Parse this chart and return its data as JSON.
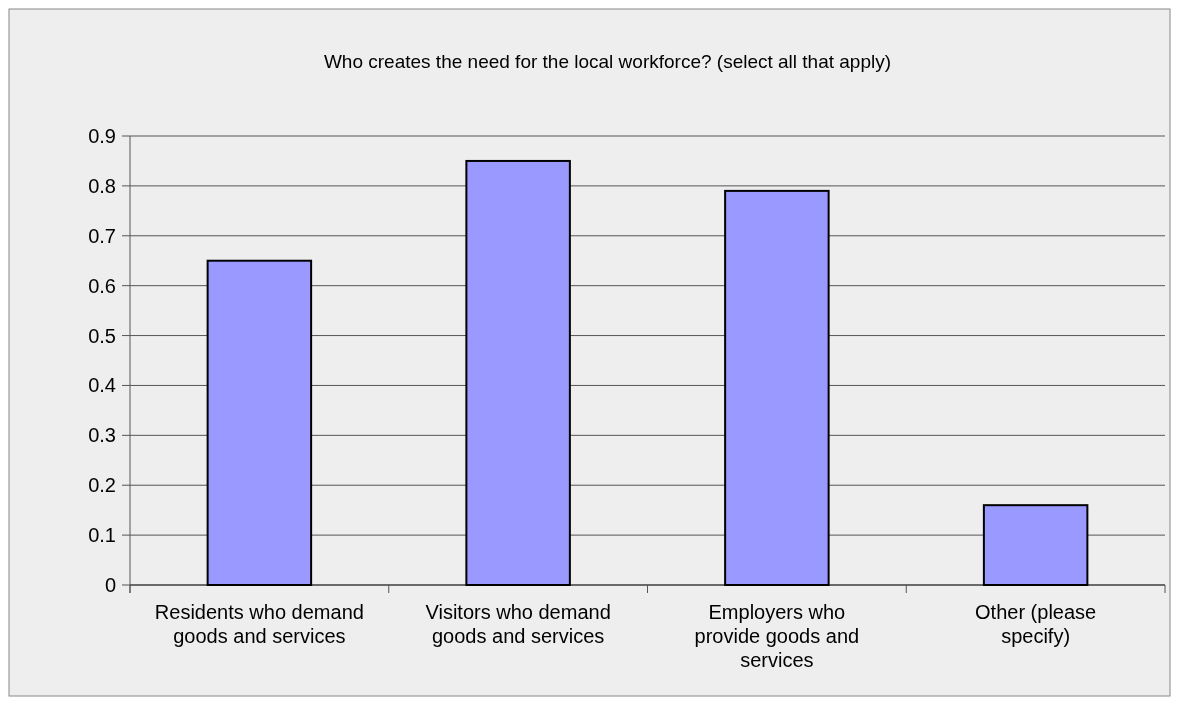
{
  "chart_data": {
    "type": "bar",
    "title": "Who creates the need for the local workforce? (select all that apply)",
    "categories": [
      "Residents who demand goods and services",
      "Visitors who demand goods and services",
      "Employers who provide goods and services",
      "Other (please specify)"
    ],
    "values": [
      0.65,
      0.85,
      0.79,
      0.16
    ],
    "color": "#9999ff",
    "ylim": [
      0,
      0.9
    ],
    "yticks": [
      0,
      0.1,
      0.2,
      0.3,
      0.4,
      0.5,
      0.6,
      0.7,
      0.8,
      0.9
    ],
    "grid": "y"
  }
}
